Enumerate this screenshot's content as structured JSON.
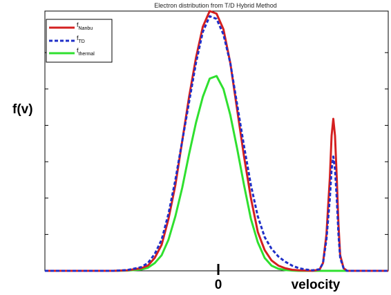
{
  "chart_data": {
    "type": "line",
    "title": "Electron distribution from T/D Hybrid Method",
    "ylabel": "f(v)",
    "xlabel": "velocity",
    "x_tick_labels": [
      "0"
    ],
    "xlim": [
      -5,
      5
    ],
    "ylim": [
      0,
      1
    ],
    "grid": false,
    "legend_placement": "top-left",
    "legend": [
      {
        "base": "f",
        "sub": "Nanbu",
        "color": "#d42020",
        "style": "solid"
      },
      {
        "base": "f",
        "sub": "TD",
        "color": "#1f2fc8",
        "style": "dashed"
      },
      {
        "base": "f",
        "sub": "thermal",
        "color": "#2fe02f",
        "style": "solid"
      }
    ],
    "series": [
      {
        "color": "#d42020",
        "style": "solid",
        "x": [
          -5,
          -4,
          -3,
          -2.6,
          -2.2,
          -2,
          -1.8,
          -1.6,
          -1.4,
          -1.2,
          -1,
          -0.8,
          -0.6,
          -0.4,
          -0.2,
          0,
          0.2,
          0.4,
          0.6,
          0.8,
          1,
          1.2,
          1.4,
          1.6,
          1.8,
          2,
          2.2,
          2.4,
          2.6,
          2.8,
          3,
          3.1,
          3.2,
          3.3,
          3.35,
          3.4,
          3.45,
          3.5,
          3.55,
          3.6,
          3.7,
          3.8,
          4,
          4.5,
          5
        ],
        "y": [
          0,
          0,
          0,
          0.002,
          0.01,
          0.02,
          0.05,
          0.1,
          0.2,
          0.33,
          0.5,
          0.67,
          0.82,
          0.94,
          1.0,
          0.99,
          0.93,
          0.8,
          0.62,
          0.44,
          0.28,
          0.15,
          0.08,
          0.04,
          0.02,
          0.01,
          0.004,
          0.002,
          0.001,
          0,
          0.005,
          0.03,
          0.14,
          0.36,
          0.52,
          0.585,
          0.52,
          0.36,
          0.18,
          0.06,
          0.01,
          0,
          0,
          0,
          0
        ]
      },
      {
        "color": "#1f2fc8",
        "style": "dashed",
        "x": [
          -5,
          -4,
          -3,
          -2.6,
          -2.2,
          -2,
          -1.8,
          -1.6,
          -1.4,
          -1.2,
          -1,
          -0.8,
          -0.6,
          -0.4,
          -0.2,
          0,
          0.2,
          0.4,
          0.6,
          0.8,
          1,
          1.2,
          1.4,
          1.6,
          1.8,
          2,
          2.2,
          2.4,
          2.6,
          2.8,
          3,
          3.1,
          3.2,
          3.3,
          3.35,
          3.4,
          3.45,
          3.5,
          3.55,
          3.6,
          3.7,
          3.8,
          4,
          4.5,
          5
        ],
        "y": [
          0,
          0,
          0,
          0.003,
          0.014,
          0.03,
          0.065,
          0.12,
          0.22,
          0.35,
          0.5,
          0.65,
          0.8,
          0.92,
          0.98,
          0.97,
          0.91,
          0.8,
          0.64,
          0.48,
          0.33,
          0.21,
          0.13,
          0.085,
          0.055,
          0.035,
          0.02,
          0.01,
          0.005,
          0.002,
          0.006,
          0.03,
          0.12,
          0.28,
          0.39,
          0.44,
          0.39,
          0.28,
          0.14,
          0.05,
          0.01,
          0,
          0,
          0,
          0
        ]
      },
      {
        "color": "#2fe02f",
        "style": "solid",
        "x": [
          -5,
          -4,
          -3,
          -2.6,
          -2.2,
          -2,
          -1.8,
          -1.6,
          -1.4,
          -1.2,
          -1,
          -0.8,
          -0.6,
          -0.4,
          -0.2,
          0,
          0.2,
          0.4,
          0.6,
          0.8,
          1,
          1.2,
          1.4,
          1.6,
          1.8,
          2,
          2.2,
          2.4,
          2.6,
          3,
          4,
          5
        ],
        "y": [
          0,
          0,
          0,
          0.001,
          0.005,
          0.012,
          0.03,
          0.06,
          0.12,
          0.21,
          0.32,
          0.45,
          0.57,
          0.67,
          0.74,
          0.75,
          0.7,
          0.6,
          0.47,
          0.33,
          0.2,
          0.11,
          0.05,
          0.02,
          0.008,
          0.003,
          0.001,
          0,
          0,
          0,
          0,
          0
        ]
      }
    ]
  }
}
